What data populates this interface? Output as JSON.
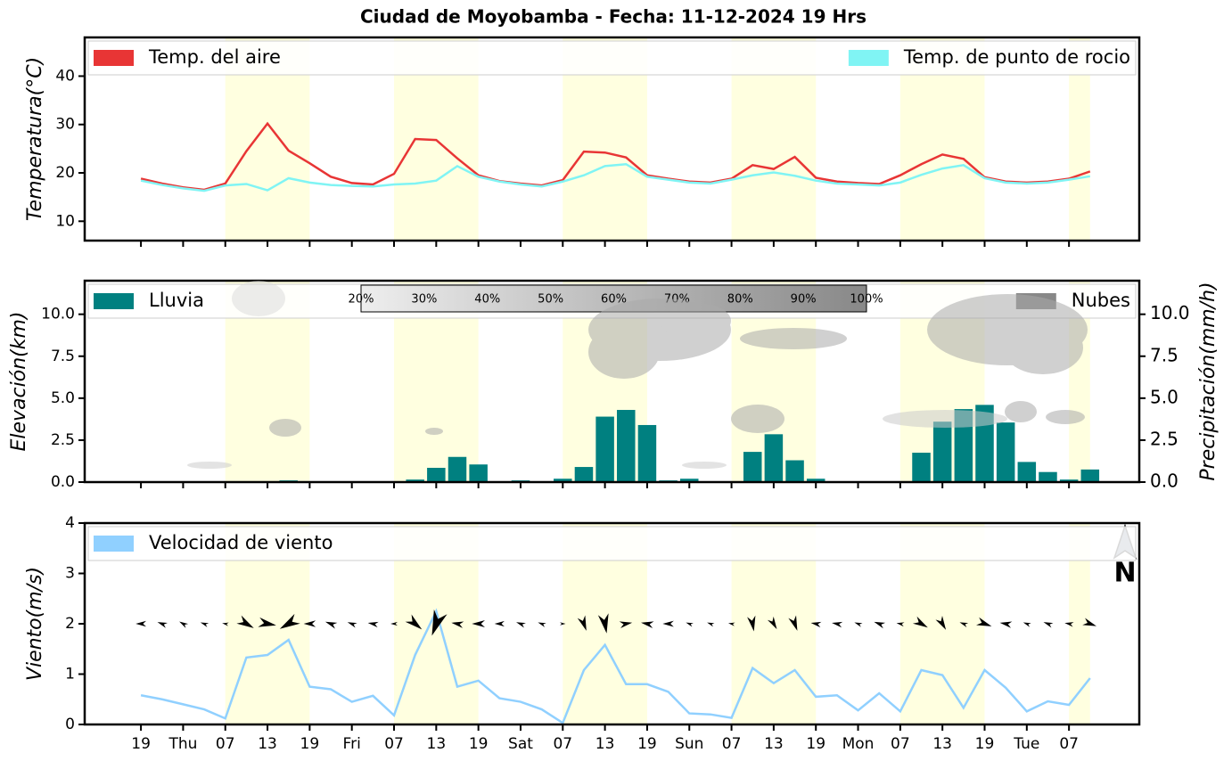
{
  "chart_data": [
    {
      "type": "line",
      "title": "Ciudad de Moyobamba   -   Fecha: 11-12-2024 19 Hrs",
      "ylabel": "Temperatura(°C)",
      "x": [
        0,
        3,
        6,
        9,
        12,
        15,
        18,
        21,
        24,
        27,
        30,
        33,
        36,
        39,
        42,
        45,
        48,
        51,
        54,
        57,
        60,
        63,
        66,
        69,
        72,
        75,
        78,
        81,
        84,
        87,
        90,
        93,
        96,
        99,
        102,
        105,
        108,
        111,
        114,
        117,
        120,
        123,
        126,
        129,
        132,
        135
      ],
      "xlim": [
        -8,
        142
      ],
      "xticks": [
        0,
        6,
        12,
        18,
        24,
        30,
        36,
        42,
        48,
        54,
        60,
        66,
        72,
        78,
        84,
        90,
        96,
        102,
        108,
        114,
        120,
        126,
        132
      ],
      "ylim": [
        6,
        48
      ],
      "yticks": [
        10,
        20,
        30,
        40
      ],
      "shading": [
        [
          12,
          24
        ],
        [
          36,
          48
        ],
        [
          60,
          72
        ],
        [
          84,
          96
        ],
        [
          108,
          120
        ],
        [
          132,
          135
        ]
      ],
      "shading_color": "#ffffe0",
      "series": [
        {
          "name": "Temp. del aire",
          "color": "#e83535",
          "values": [
            18.8,
            17.8,
            17,
            16.5,
            17.8,
            24.5,
            30.2,
            24.6,
            22,
            19.2,
            17.9,
            17.6,
            19.8,
            27,
            26.8,
            23,
            19.5,
            18.3,
            17.8,
            17.4,
            18.5,
            24.4,
            24.2,
            23.2,
            19.5,
            18.8,
            18.2,
            18,
            18.8,
            21.6,
            20.8,
            23.3,
            19,
            18.2,
            17.9,
            17.7,
            19.5,
            21.8,
            23.8,
            22.9,
            19.1,
            18.2,
            18,
            18.2,
            18.8,
            20.3
          ]
        },
        {
          "name": "Temp. de punto de rocio",
          "color": "#80f4f4",
          "values": [
            18.4,
            17.5,
            16.8,
            16.3,
            17.4,
            17.7,
            16.4,
            18.9,
            18,
            17.5,
            17.3,
            17.2,
            17.6,
            17.8,
            18.4,
            21.4,
            19.2,
            18.2,
            17.6,
            17.2,
            18.2,
            19.5,
            21.4,
            21.8,
            19.2,
            18.6,
            18,
            17.8,
            18.6,
            19.5,
            20.1,
            19.4,
            18.4,
            17.8,
            17.6,
            17.4,
            18,
            19.6,
            20.9,
            21.6,
            18.9,
            18,
            17.8,
            18,
            18.6,
            19.3
          ]
        }
      ]
    },
    {
      "type": "bar",
      "ylabel": "Elevación(km)",
      "y2label": "Precipitación(mm/h)",
      "x": [
        0,
        3,
        6,
        9,
        12,
        15,
        18,
        21,
        24,
        27,
        30,
        33,
        36,
        39,
        42,
        45,
        48,
        51,
        54,
        57,
        60,
        63,
        66,
        69,
        72,
        75,
        78,
        81,
        84,
        87,
        90,
        93,
        96,
        99,
        102,
        105,
        108,
        111,
        114,
        117,
        120,
        123,
        126,
        129,
        132,
        135
      ],
      "xlim": [
        -8,
        142
      ],
      "xticks": [
        0,
        6,
        12,
        18,
        24,
        30,
        36,
        42,
        48,
        54,
        60,
        66,
        72,
        78,
        84,
        90,
        96,
        102,
        108,
        114,
        120,
        126,
        132
      ],
      "ylim": [
        0,
        12
      ],
      "yticks": [
        {
          "value": 0,
          "label": "0.0"
        },
        {
          "value": 2.5,
          "label": "2.5"
        },
        {
          "value": 5,
          "label": "5.0"
        },
        {
          "value": 7.5,
          "label": "7.5"
        },
        {
          "value": 10,
          "label": "10.0"
        }
      ],
      "y2lim": [
        0,
        12
      ],
      "y2ticks": [
        {
          "value": 0,
          "label": "0.0"
        },
        {
          "value": 2.5,
          "label": "2.5"
        },
        {
          "value": 5,
          "label": "5.0"
        },
        {
          "value": 7.5,
          "label": "7.5"
        },
        {
          "value": 10,
          "label": "10.0"
        }
      ],
      "shading": [
        [
          12,
          24
        ],
        [
          36,
          48
        ],
        [
          60,
          72
        ],
        [
          84,
          96
        ],
        [
          108,
          120
        ],
        [
          132,
          135
        ]
      ],
      "shading_color": "#ffffe0",
      "series": [
        {
          "name": "Lluvia",
          "color": "#008080",
          "axis": "y2",
          "values": [
            0,
            0,
            0,
            0,
            0,
            0,
            0,
            0.1,
            0.05,
            0.05,
            0.05,
            0.05,
            0.05,
            0.15,
            0.85,
            1.5,
            1.05,
            0,
            0.1,
            0.05,
            0.2,
            0.9,
            3.9,
            4.3,
            3.4,
            0.1,
            0.2,
            0,
            0.05,
            1.8,
            2.85,
            1.3,
            0.2,
            0,
            0,
            0,
            0.05,
            1.75,
            3.6,
            4.35,
            4.6,
            3.55,
            1.2,
            0.6,
            0.15,
            0.75
          ]
        }
      ],
      "clouds": {
        "name": "Nubes",
        "color": "#888888",
        "colorbar_lim": [
          20,
          100
        ],
        "colorbar_ticks": [
          {
            "value": 20,
            "label": "20%"
          },
          {
            "value": 30,
            "label": "30%"
          },
          {
            "value": 40,
            "label": "40%"
          },
          {
            "value": 50,
            "label": "50%"
          },
          {
            "value": 60,
            "label": "60%"
          },
          {
            "value": 70,
            "label": "70%"
          },
          {
            "value": 80,
            "label": "80%"
          },
          {
            "value": 90,
            "label": "90%"
          },
          {
            "value": 100,
            "label": "100%"
          }
        ]
      }
    },
    {
      "type": "line",
      "ylabel": "Viento(m/s)",
      "x": [
        0,
        3,
        6,
        9,
        12,
        15,
        18,
        21,
        24,
        27,
        30,
        33,
        36,
        39,
        42,
        45,
        48,
        51,
        54,
        57,
        60,
        63,
        66,
        69,
        72,
        75,
        78,
        81,
        84,
        87,
        90,
        93,
        96,
        99,
        102,
        105,
        108,
        111,
        114,
        117,
        120,
        123,
        126,
        129,
        132,
        135
      ],
      "xlim": [
        -8,
        142
      ],
      "xticks": [
        {
          "value": 0,
          "label": "19"
        },
        {
          "value": 6,
          "label": "Thu"
        },
        {
          "value": 12,
          "label": "07"
        },
        {
          "value": 18,
          "label": "13"
        },
        {
          "value": 24,
          "label": "19"
        },
        {
          "value": 30,
          "label": "Fri"
        },
        {
          "value": 36,
          "label": "07"
        },
        {
          "value": 42,
          "label": "13"
        },
        {
          "value": 48,
          "label": "19"
        },
        {
          "value": 54,
          "label": "Sat"
        },
        {
          "value": 60,
          "label": "07"
        },
        {
          "value": 66,
          "label": "13"
        },
        {
          "value": 72,
          "label": "19"
        },
        {
          "value": 78,
          "label": "Sun"
        },
        {
          "value": 84,
          "label": "07"
        },
        {
          "value": 90,
          "label": "13"
        },
        {
          "value": 96,
          "label": "19"
        },
        {
          "value": 102,
          "label": "Mon"
        },
        {
          "value": 108,
          "label": "07"
        },
        {
          "value": 114,
          "label": "13"
        },
        {
          "value": 120,
          "label": "19"
        },
        {
          "value": 126,
          "label": "Tue"
        },
        {
          "value": 132,
          "label": "07"
        }
      ],
      "ylim": [
        0,
        4
      ],
      "yticks": [
        0,
        1,
        2,
        3,
        4
      ],
      "shading": [
        [
          12,
          24
        ],
        [
          36,
          48
        ],
        [
          60,
          72
        ],
        [
          84,
          96
        ],
        [
          108,
          120
        ],
        [
          132,
          135
        ]
      ],
      "shading_color": "#ffffe0",
      "series": [
        {
          "name": "Velocidad de viento",
          "color": "#90d0ff",
          "values": [
            0.58,
            0.5,
            0.4,
            0.3,
            0.12,
            1.33,
            1.38,
            1.68,
            0.75,
            0.7,
            0.45,
            0.57,
            0.18,
            1.38,
            2.25,
            0.75,
            0.87,
            0.52,
            0.45,
            0.3,
            0.03,
            1.08,
            1.58,
            0.8,
            0.8,
            0.65,
            0.22,
            0.2,
            0.13,
            1.12,
            0.82,
            1.08,
            0.55,
            0.58,
            0.28,
            0.62,
            0.26,
            1.08,
            0.98,
            0.33,
            1.08,
            0.73,
            0.26,
            0.46,
            0.39,
            0.92
          ]
        }
      ],
      "wind_direction": [
        180,
        200,
        210,
        200,
        190,
        30,
        10,
        150,
        180,
        200,
        200,
        190,
        180,
        40,
        110,
        190,
        180,
        180,
        200,
        200,
        0,
        70,
        80,
        350,
        190,
        180,
        200,
        200,
        190,
        80,
        60,
        70,
        190,
        190,
        200,
        200,
        190,
        30,
        60,
        200,
        20,
        190,
        200,
        200,
        190,
        20
      ]
    }
  ]
}
